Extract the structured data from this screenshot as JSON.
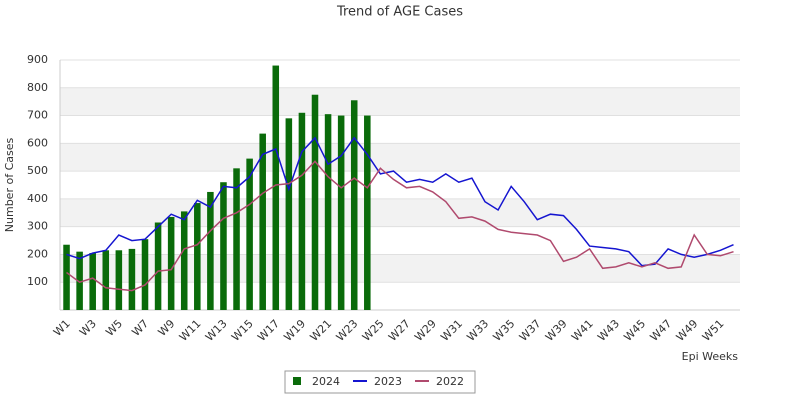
{
  "chart_data": {
    "type": "combo",
    "title": "Trend of AGE Cases",
    "x_label": "Epi Weeks",
    "y_label": "Number of Cases",
    "categories": [
      "W1",
      null,
      "W3",
      null,
      "W5",
      null,
      "W7",
      null,
      "W9",
      null,
      "W11",
      null,
      "W13",
      null,
      "W15",
      null,
      "W17",
      null,
      "W19",
      null,
      "W21",
      null,
      "W23",
      null,
      "W25",
      null,
      "W27",
      null,
      "W29",
      null,
      "W31",
      null,
      "W33",
      null,
      "W35",
      null,
      "W37",
      null,
      "W39",
      null,
      "W41",
      null,
      "W43",
      null,
      "W45",
      null,
      "W47",
      null,
      "W49",
      null,
      "W51",
      null
    ],
    "series": [
      {
        "name": "2024",
        "type": "bar",
        "color": "#0a6b0a",
        "values": [
          235,
          210,
          205,
          215,
          215,
          220,
          255,
          315,
          335,
          355,
          385,
          425,
          460,
          510,
          545,
          635,
          880,
          690,
          710,
          775,
          705,
          700,
          755,
          700,
          null,
          null,
          null,
          null,
          null,
          null,
          null,
          null,
          null,
          null,
          null,
          null,
          null,
          null,
          null,
          null,
          null,
          null,
          null,
          null,
          null,
          null,
          null,
          null,
          null,
          null,
          null,
          null
        ]
      },
      {
        "name": "2023",
        "type": "line",
        "color": "#1515d0",
        "values": [
          200,
          185,
          205,
          215,
          270,
          250,
          255,
          300,
          345,
          325,
          395,
          370,
          445,
          440,
          480,
          560,
          580,
          435,
          570,
          620,
          525,
          555,
          620,
          560,
          490,
          500,
          460,
          470,
          460,
          490,
          460,
          475,
          390,
          360,
          445,
          390,
          325,
          345,
          340,
          290,
          230,
          225,
          220,
          210,
          160,
          165,
          220,
          200,
          190,
          200,
          215,
          235
        ]
      },
      {
        "name": "2022",
        "type": "line",
        "color": "#b04a6e",
        "values": [
          135,
          100,
          115,
          80,
          75,
          70,
          90,
          140,
          145,
          220,
          235,
          285,
          330,
          350,
          380,
          420,
          450,
          455,
          485,
          535,
          480,
          440,
          475,
          440,
          510,
          470,
          440,
          445,
          425,
          390,
          330,
          335,
          320,
          290,
          280,
          275,
          270,
          250,
          175,
          190,
          220,
          150,
          155,
          170,
          155,
          170,
          150,
          155,
          270,
          200,
          195,
          210
        ]
      }
    ],
    "ylim": [
      0,
      900
    ],
    "yticks": [
      100,
      200,
      300,
      400,
      500,
      600,
      700,
      800,
      900
    ],
    "grid": true
  }
}
